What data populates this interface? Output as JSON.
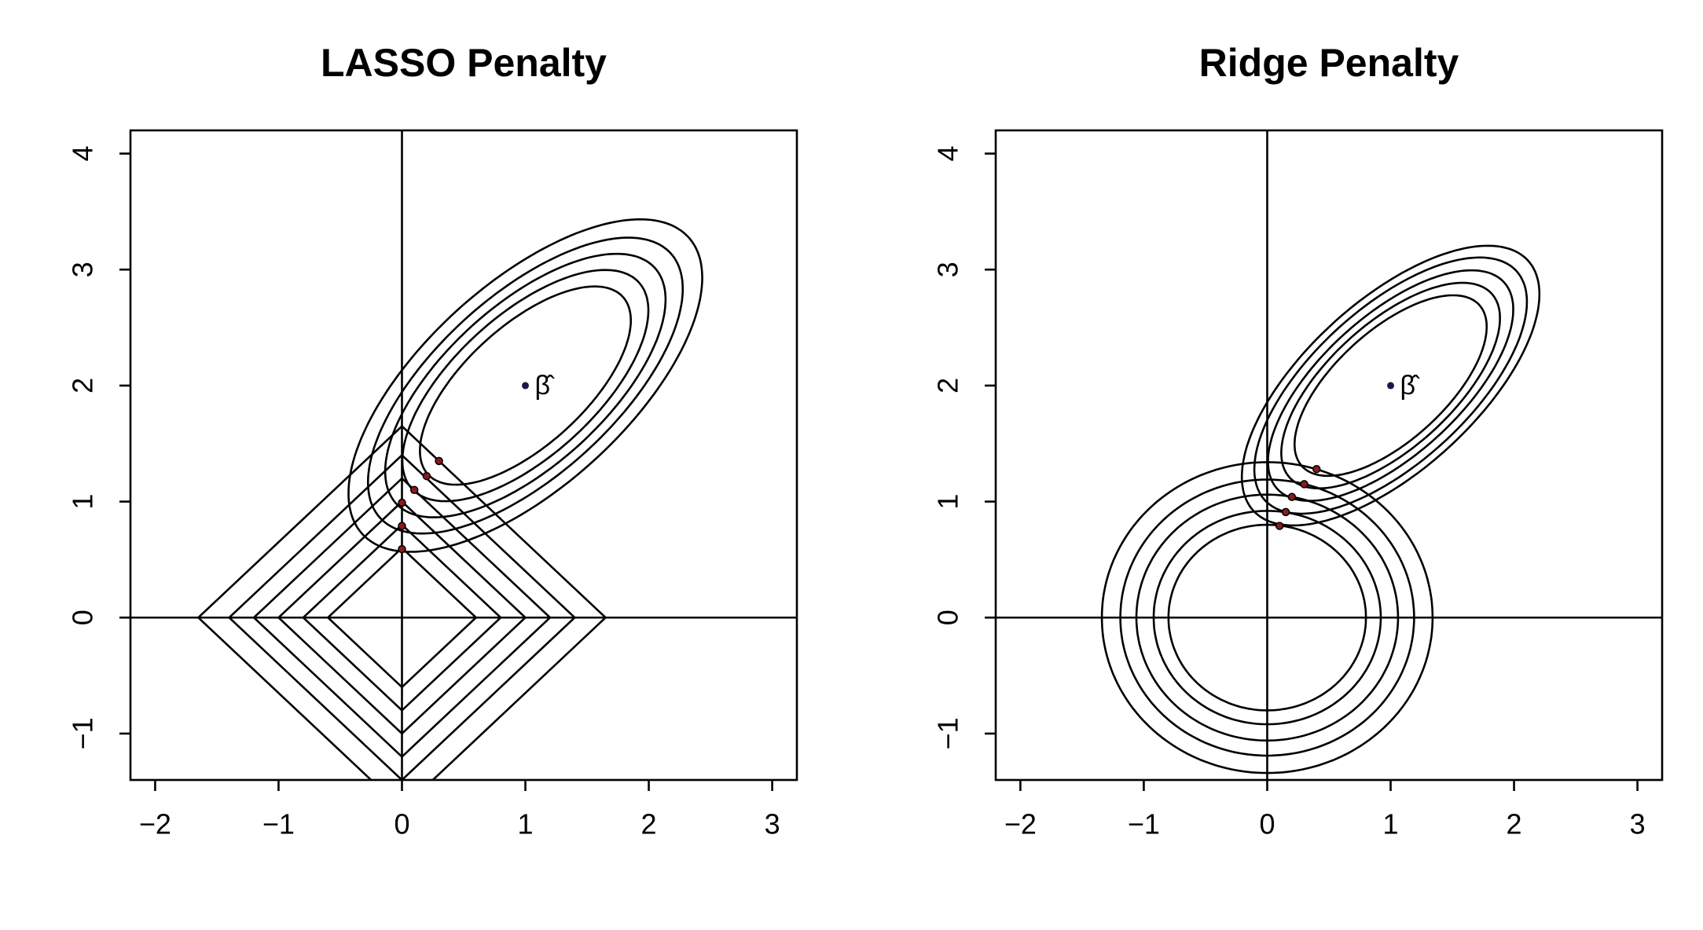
{
  "chart_data": [
    {
      "type": "contour",
      "title": "LASSO Penalty",
      "xlim": [
        -2.2,
        3.2
      ],
      "ylim": [
        -1.4,
        4.2
      ],
      "xticks": [
        {
          "value": -2,
          "label": "−2"
        },
        {
          "value": -1,
          "label": "−1"
        },
        0,
        1,
        2,
        3
      ],
      "yticks": [
        {
          "value": -1,
          "label": "−1"
        },
        0,
        1,
        2,
        3,
        4
      ],
      "center": {
        "x": 1,
        "y": 2,
        "label": "β̂"
      },
      "angle": 45,
      "ellipses": {
        "major": [
          1.1,
          1.28,
          1.46,
          1.64,
          1.84
        ],
        "minor": [
          0.5,
          0.59,
          0.67,
          0.75,
          0.85
        ]
      },
      "penalty": {
        "shape": "diamond",
        "radii": [
          0.6,
          0.8,
          1.0,
          1.2,
          1.4,
          1.65
        ]
      },
      "points": {
        "color": "#8b1a1a",
        "x": [
          0.3,
          0.2,
          0.1,
          0,
          0,
          0
        ],
        "y": [
          1.35,
          1.22,
          1.1,
          0.99,
          0.79,
          0.59
        ]
      }
    },
    {
      "type": "contour",
      "title": "Ridge Penalty",
      "xlim": [
        -2.2,
        3.2
      ],
      "ylim": [
        -1.4,
        4.2
      ],
      "xticks": [
        {
          "value": -2,
          "label": "−2"
        },
        {
          "value": -1,
          "label": "−1"
        },
        0,
        1,
        2,
        3
      ],
      "yticks": [
        {
          "value": -1,
          "label": "−1"
        },
        0,
        1,
        2,
        3,
        4
      ],
      "center": {
        "x": 1,
        "y": 2,
        "label": "β̂"
      },
      "angle": 45,
      "ellipses": {
        "major": [
          1.0,
          1.14,
          1.28,
          1.42,
          1.55
        ],
        "minor": [
          0.46,
          0.52,
          0.58,
          0.65,
          0.71
        ]
      },
      "penalty": {
        "shape": "circle",
        "radii": [
          0.8,
          0.92,
          1.06,
          1.19,
          1.34
        ]
      },
      "points": {
        "color": "#8b1a1a",
        "x": [
          0.1,
          0.15,
          0.2,
          0.3,
          0.4
        ],
        "y": [
          0.79,
          0.91,
          1.04,
          1.15,
          1.28
        ]
      }
    }
  ]
}
